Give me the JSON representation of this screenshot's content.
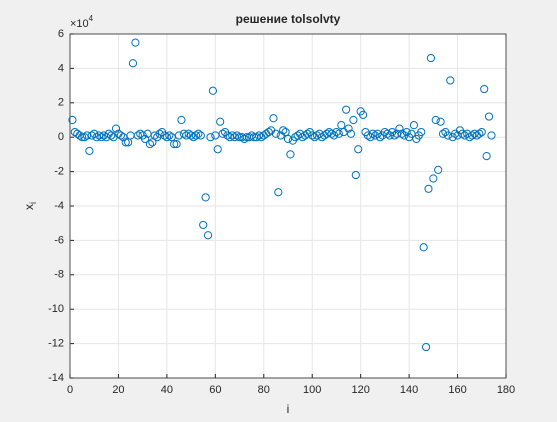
{
  "chart_data": {
    "type": "scatter",
    "title": "решение tolsolvty",
    "xlabel": "i",
    "ylabel": "x",
    "ylabel_sub": "i",
    "y_exponent": {
      "base": "×10",
      "power": "4"
    },
    "color": "#0072bd",
    "grid": true,
    "xlim": [
      0,
      180
    ],
    "xticks": [
      0,
      20,
      40,
      60,
      80,
      100,
      120,
      140,
      160,
      180
    ],
    "ylim": [
      -14,
      6
    ],
    "yticks": [
      -14,
      -12,
      -10,
      -8,
      -6,
      -4,
      -2,
      0,
      2,
      4,
      6
    ],
    "x": [
      1,
      2,
      3,
      4,
      5,
      6,
      7,
      8,
      9,
      10,
      11,
      12,
      13,
      14,
      15,
      16,
      17,
      18,
      19,
      20,
      21,
      22,
      23,
      24,
      25,
      26,
      27,
      28,
      29,
      30,
      31,
      32,
      33,
      34,
      35,
      36,
      37,
      38,
      39,
      40,
      41,
      42,
      43,
      44,
      45,
      46,
      47,
      48,
      49,
      50,
      51,
      52,
      53,
      54,
      55,
      56,
      57,
      58,
      59,
      60,
      61,
      62,
      63,
      64,
      65,
      66,
      67,
      68,
      69,
      70,
      71,
      72,
      73,
      74,
      75,
      76,
      77,
      78,
      79,
      80,
      81,
      82,
      83,
      84,
      85,
      86,
      87,
      88,
      89,
      90,
      91,
      92,
      93,
      94,
      95,
      96,
      97,
      98,
      99,
      100,
      101,
      102,
      103,
      104,
      105,
      106,
      107,
      108,
      109,
      110,
      111,
      112,
      113,
      114,
      115,
      116,
      117,
      118,
      119,
      120,
      121,
      122,
      123,
      124,
      125,
      126,
      127,
      128,
      129,
      130,
      131,
      132,
      133,
      134,
      135,
      136,
      137,
      138,
      139,
      140,
      141,
      142,
      143,
      144,
      145,
      146,
      147,
      148,
      149,
      150,
      151,
      152,
      153,
      154,
      155,
      156,
      157,
      158,
      159,
      160,
      161,
      162,
      163,
      164,
      165,
      166,
      167,
      168,
      169,
      170,
      171,
      172,
      173,
      174
    ],
    "values": [
      1.0,
      0.3,
      0.2,
      0.1,
      0,
      0,
      0.1,
      -0.8,
      0.1,
      0.2,
      0,
      0.1,
      0,
      0.1,
      0,
      0.2,
      0.1,
      0,
      0.5,
      0.2,
      0.1,
      0,
      -0.3,
      -0.3,
      0.1,
      4.3,
      5.5,
      0.1,
      0.2,
      0.1,
      -0.1,
      0.2,
      -0.4,
      -0.3,
      0.1,
      0,
      0.2,
      0.3,
      0.1,
      0,
      0.1,
      0,
      -0.4,
      -0.4,
      0.1,
      1.0,
      0.2,
      0.1,
      0.2,
      0.1,
      0,
      0.1,
      0.2,
      0.1,
      -5.1,
      -3.5,
      -5.7,
      0,
      2.7,
      0.1,
      -0.7,
      0.9,
      0.2,
      0.3,
      0.1,
      0,
      0.1,
      0,
      0.1,
      0,
      0,
      -0.1,
      0,
      0,
      0.1,
      0,
      0,
      0.1,
      0,
      0.1,
      0.2,
      0.3,
      0.4,
      1.1,
      0.2,
      -3.2,
      0.1,
      0.4,
      0.3,
      -0.1,
      -1.0,
      -0.2,
      0,
      0.1,
      0.2,
      0,
      0.1,
      0.2,
      0.3,
      0.1,
      0,
      0.1,
      0.2,
      0,
      0.1,
      0.2,
      0.3,
      0.2,
      0.1,
      0.3,
      0.2,
      0.7,
      0.3,
      1.6,
      0.5,
      0.2,
      1.0,
      -2.2,
      -0.7,
      1.5,
      1.3,
      0.3,
      0.1,
      0,
      0.2,
      0.1,
      0.2,
      0,
      0.1,
      0.3,
      0.2,
      0.1,
      0.3,
      0.1,
      0.2,
      0.5,
      0.2,
      0.1,
      0.3,
      0,
      0.2,
      0.7,
      -0.1,
      0.1,
      0.3,
      -6.4,
      -12.2,
      -3.0,
      4.6,
      -2.4,
      1.0,
      -1.9,
      0.9,
      0.2,
      0.3,
      0.1,
      3.3,
      0,
      0.2,
      0.1,
      0.4,
      0.2,
      0.1,
      0.2,
      0,
      0.1,
      0.2,
      0.1,
      0.2,
      0.3,
      2.8,
      -1.1,
      1.2,
      0.1
    ]
  }
}
